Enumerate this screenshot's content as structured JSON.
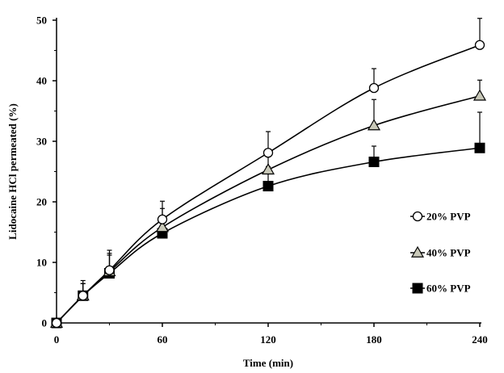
{
  "chart_data": {
    "type": "line",
    "title": "",
    "xlabel": "Time (min)",
    "ylabel": "Lidocaine HCl permeated (%)",
    "xlim": [
      0,
      240
    ],
    "ylim": [
      0,
      50
    ],
    "xticks": [
      0,
      60,
      120,
      180,
      240
    ],
    "yticks": [
      0,
      10,
      20,
      30,
      40,
      50
    ],
    "grid": false,
    "legend_position": "right",
    "series": [
      {
        "name": "20% PVP",
        "marker": "circle-open",
        "x": [
          0,
          15,
          30,
          60,
          120,
          180,
          240
        ],
        "y": [
          0,
          4.5,
          8.7,
          17.1,
          28.1,
          38.8,
          45.9
        ],
        "error": [
          0,
          2.0,
          2.8,
          3.0,
          3.5,
          3.2,
          4.4
        ]
      },
      {
        "name": "40% PVP",
        "marker": "triangle-grey",
        "x": [
          0,
          15,
          30,
          60,
          120,
          180,
          240
        ],
        "y": [
          0,
          4.5,
          8.5,
          15.8,
          25.3,
          32.6,
          37.5
        ],
        "error": [
          0,
          2.0,
          2.7,
          3.1,
          3.0,
          4.3,
          2.6
        ]
      },
      {
        "name": "60% PVP",
        "marker": "square-filled",
        "x": [
          0,
          15,
          30,
          60,
          120,
          180,
          240
        ],
        "y": [
          0,
          4.5,
          8.2,
          14.8,
          22.6,
          26.6,
          28.9
        ],
        "error": [
          0,
          2.5,
          3.8,
          2.8,
          3.2,
          2.6,
          5.9
        ]
      }
    ]
  }
}
